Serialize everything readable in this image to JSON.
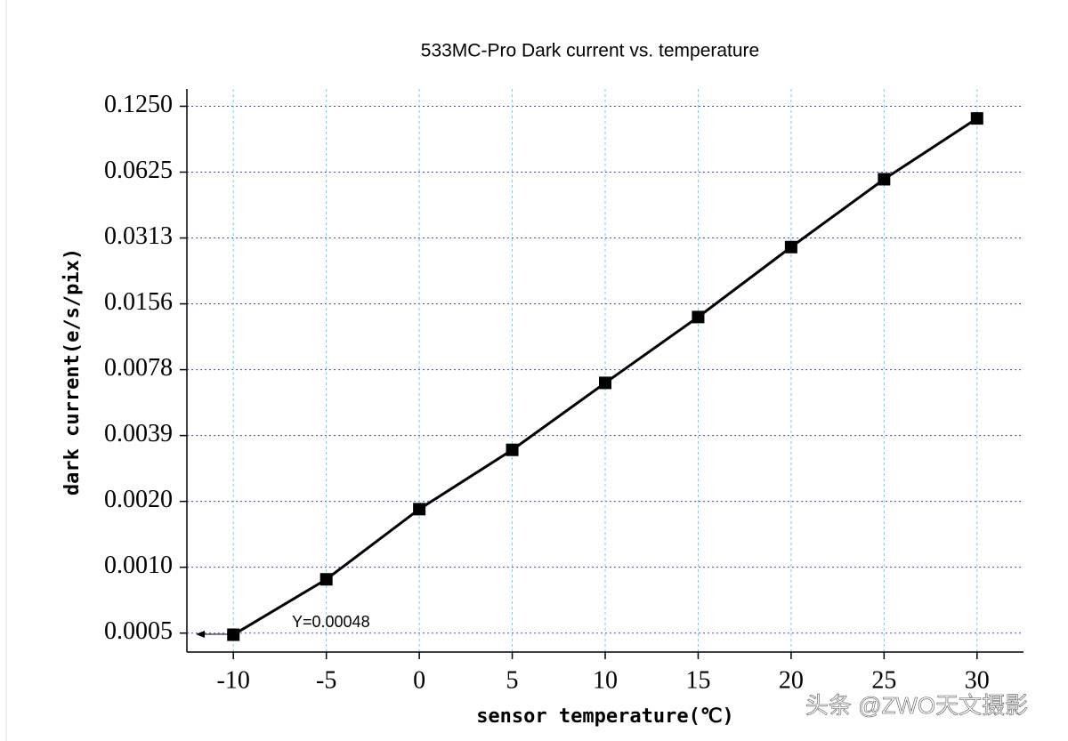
{
  "chart_data": {
    "type": "line",
    "title": "533MC-Pro Dark current vs. temperature",
    "x_label": "sensor temperature(℃)",
    "y_label": "dark current(e/s/pix)",
    "x": [
      -10,
      -5,
      0,
      5,
      10,
      15,
      20,
      25,
      30
    ],
    "series": [
      {
        "color": "#000000",
        "marker": "square",
        "values": [
          0.00048,
          0.00086,
          0.0018,
          0.00336,
          0.0068,
          0.0136,
          0.0284,
          0.058,
          0.11
        ]
      }
    ],
    "xlim": [
      -12.5,
      32.5
    ],
    "xticks": [
      -10,
      -5,
      0,
      5,
      10,
      15,
      20,
      25,
      30
    ],
    "ylim": [
      0.0004,
      0.15
    ],
    "yscale": "log",
    "yticks": [
      {
        "value": 0.00048828125,
        "label": "0.0005"
      },
      {
        "value": 0.0009765625,
        "label": "0.0010"
      },
      {
        "value": 0.001953125,
        "label": "0.0020"
      },
      {
        "value": 0.00390625,
        "label": "0.0039"
      },
      {
        "value": 0.0078125,
        "label": "0.0078"
      },
      {
        "value": 0.015625,
        "label": "0.0156"
      },
      {
        "value": 0.03125,
        "label": "0.0313"
      },
      {
        "value": 0.0625,
        "label": "0.0625"
      },
      {
        "value": 0.125,
        "label": "0.1250"
      }
    ],
    "grid": true,
    "annotation": "Y=0.00048",
    "watermark": "头条 @ZWO天文摄影"
  }
}
